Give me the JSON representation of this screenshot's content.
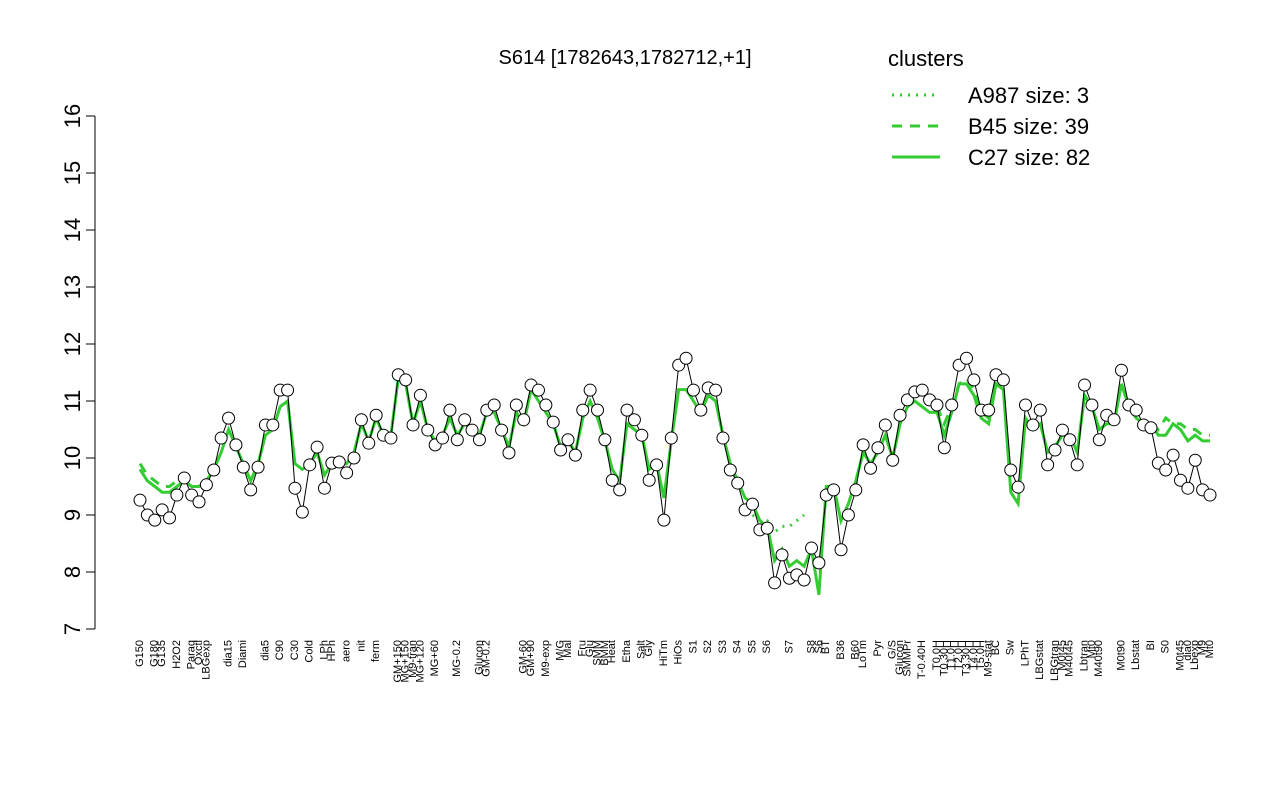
{
  "chart_data": {
    "type": "line",
    "title": "S614 [1782643,1782712,+1]",
    "legend_title": "clusters",
    "legend_position": "top-right",
    "line_color": "#000000",
    "point_fill": "#ffffff",
    "point_color": "#000000",
    "ylim": [
      7,
      16
    ],
    "yticks": [
      7,
      8,
      9,
      10,
      11,
      12,
      13,
      14,
      15,
      16
    ],
    "categories": [
      "G150",
      null,
      "G180",
      "G135",
      null,
      "H2O2",
      null,
      "Paraq",
      "Oxctl",
      "LBGexp",
      null,
      null,
      "dia15",
      null,
      "Diami",
      null,
      null,
      "dia5",
      null,
      "C90",
      null,
      "C30",
      null,
      "Cold",
      null,
      "LPh",
      "HPh",
      null,
      "aero",
      null,
      "nit",
      null,
      "ferm",
      null,
      null,
      "GM+150",
      "MG+150",
      "M9-tran",
      "MG+120",
      null,
      "MG+60",
      null,
      null,
      "MG-0.2",
      null,
      null,
      "Glucon",
      "GM-0.2",
      null,
      null,
      null,
      null,
      "GM-60",
      "GM+90",
      null,
      "M9-exp",
      null,
      "M/G",
      "Mal",
      null,
      "Fru",
      "Glu",
      "SMM",
      "BMM",
      "Heat",
      null,
      "Etha",
      null,
      "Salt",
      "Gly",
      null,
      "HiTm",
      null,
      "HiOs",
      null,
      "S1",
      null,
      "S2",
      null,
      "S3",
      null,
      "S4",
      null,
      "S5",
      null,
      "S6",
      null,
      null,
      "S7",
      null,
      null,
      "S8",
      "S6",
      "BT",
      null,
      "B36",
      null,
      "B60",
      "LoTm",
      null,
      "Pyr",
      null,
      "G/S",
      "Glucon",
      "SMMPr",
      null,
      "T-0.40H",
      null,
      "T0.0H",
      "T0.30H",
      "T1.0H",
      "T2.0H",
      "T3.30H",
      "T4.0H",
      "T5.0H",
      "M9-stat",
      "BC",
      null,
      "Sw",
      null,
      "LPhT",
      null,
      "LBGstat",
      null,
      "LBGtran",
      "M0t45",
      "M40t45",
      null,
      "Lbtran",
      "Mt0",
      "M40t90",
      null,
      null,
      "M0t90",
      null,
      "Lbstat",
      null,
      "BI",
      null,
      "S0",
      null,
      "M0t45",
      "dia0",
      "Lbexp",
      "M9",
      "Mt0"
    ],
    "values": [
      9.26,
      9.0,
      8.91,
      9.09,
      8.95,
      9.35,
      9.65,
      9.35,
      9.23,
      9.53,
      9.79,
      10.35,
      10.7,
      10.23,
      9.84,
      9.44,
      9.84,
      10.58,
      10.58,
      11.19,
      11.19,
      9.47,
      9.05,
      9.88,
      10.19,
      9.47,
      9.91,
      9.93,
      9.74,
      10.0,
      10.67,
      10.26,
      10.75,
      10.4,
      10.35,
      11.46,
      11.37,
      10.58,
      11.1,
      10.49,
      10.23,
      10.35,
      10.84,
      10.32,
      10.67,
      10.49,
      10.32,
      10.84,
      10.93,
      10.49,
      10.09,
      10.93,
      10.67,
      11.28,
      11.19,
      10.93,
      10.63,
      10.14,
      10.32,
      10.05,
      10.84,
      11.19,
      10.84,
      10.32,
      9.61,
      9.44,
      10.84,
      10.67,
      10.4,
      9.61,
      9.88,
      8.91,
      10.35,
      11.63,
      11.75,
      11.19,
      10.84,
      11.23,
      11.19,
      10.35,
      9.79,
      9.56,
      9.09,
      9.19,
      8.74,
      8.77,
      7.81,
      8.3,
      7.89,
      7.95,
      7.86,
      8.42,
      8.16,
      9.35,
      9.44,
      8.39,
      9.0,
      9.44,
      10.23,
      9.82,
      10.18,
      10.58,
      9.96,
      10.75,
      11.02,
      11.16,
      11.19,
      11.02,
      10.93,
      10.18,
      10.93,
      11.63,
      11.75,
      11.37,
      10.84,
      10.84,
      11.46,
      11.37,
      9.79,
      9.49,
      10.93,
      10.58,
      10.84,
      9.88,
      10.14,
      10.49,
      10.32,
      9.88,
      11.28,
      10.93,
      10.32,
      10.75,
      10.67,
      11.54,
      10.93,
      10.84,
      10.58,
      10.53,
      9.91,
      9.79,
      10.05,
      9.61,
      9.47,
      9.96,
      9.44,
      9.35
    ],
    "series": [
      {
        "name": "A987 size: 3",
        "color": "#33cc33",
        "dash": "dotted",
        "values": [
          null,
          null,
          null,
          null,
          null,
          null,
          null,
          null,
          null,
          null,
          null,
          null,
          null,
          null,
          null,
          null,
          null,
          null,
          null,
          null,
          null,
          null,
          null,
          null,
          null,
          null,
          null,
          null,
          null,
          null,
          null,
          null,
          null,
          null,
          null,
          null,
          null,
          null,
          null,
          null,
          null,
          null,
          null,
          null,
          null,
          null,
          null,
          null,
          null,
          null,
          null,
          null,
          null,
          null,
          null,
          null,
          null,
          null,
          null,
          null,
          null,
          null,
          null,
          null,
          null,
          null,
          null,
          null,
          null,
          null,
          null,
          null,
          null,
          null,
          null,
          null,
          null,
          null,
          null,
          null,
          null,
          null,
          null,
          9.0,
          8.9,
          8.9,
          8.7,
          8.8,
          8.8,
          8.9,
          9.0,
          null,
          null,
          null,
          null,
          null,
          null,
          null,
          null,
          null,
          null,
          null,
          null,
          null,
          null,
          null,
          null,
          null,
          null,
          null,
          null,
          null,
          null,
          null,
          null,
          null,
          null,
          null,
          null,
          null,
          null,
          null,
          null,
          null,
          null,
          null,
          null,
          null,
          null,
          null,
          null,
          null,
          null,
          null,
          null,
          null,
          null,
          null,
          null,
          null,
          null,
          null,
          null,
          null,
          null,
          null
        ]
      },
      {
        "name": "B45 size: 39",
        "color": "#33cc33",
        "dash": "dashed",
        "values": [
          9.9,
          9.7,
          9.6,
          9.5,
          9.5,
          9.6,
          9.7,
          9.6,
          null,
          null,
          null,
          null,
          null,
          null,
          null,
          null,
          null,
          null,
          null,
          null,
          null,
          null,
          null,
          null,
          null,
          null,
          null,
          null,
          null,
          null,
          null,
          null,
          null,
          null,
          null,
          null,
          null,
          null,
          null,
          null,
          null,
          null,
          null,
          null,
          null,
          null,
          null,
          null,
          null,
          null,
          null,
          null,
          null,
          null,
          null,
          null,
          null,
          null,
          null,
          null,
          null,
          null,
          null,
          null,
          null,
          null,
          null,
          null,
          null,
          null,
          null,
          null,
          null,
          null,
          null,
          null,
          null,
          null,
          null,
          null,
          null,
          null,
          null,
          null,
          null,
          null,
          null,
          null,
          null,
          null,
          null,
          null,
          null,
          null,
          null,
          null,
          null,
          null,
          null,
          null,
          null,
          null,
          null,
          null,
          null,
          null,
          null,
          null,
          10.9,
          10.6,
          10.9,
          11.3,
          11.4,
          11.2,
          10.8,
          10.7,
          11.4,
          11.3,
          null,
          null,
          null,
          null,
          null,
          null,
          null,
          null,
          null,
          null,
          null,
          null,
          null,
          null,
          null,
          null,
          null,
          null,
          null,
          10.6,
          10.5,
          10.7,
          10.6,
          10.6,
          10.5,
          10.5,
          10.4,
          10.4
        ]
      },
      {
        "name": "C27 size: 82",
        "color": "#33cc33",
        "dash": "solid",
        "values": [
          9.8,
          9.6,
          9.5,
          9.4,
          9.4,
          9.5,
          9.6,
          9.5,
          9.5,
          9.6,
          9.8,
          10.1,
          10.5,
          10.2,
          9.9,
          9.6,
          9.9,
          10.4,
          10.5,
          10.9,
          11.0,
          9.9,
          9.8,
          9.9,
          10.1,
          9.7,
          9.9,
          9.9,
          9.9,
          10.1,
          10.6,
          10.3,
          10.7,
          10.4,
          10.4,
          11.4,
          11.3,
          10.6,
          11.0,
          10.5,
          10.3,
          10.4,
          10.7,
          10.4,
          10.6,
          10.5,
          10.4,
          10.8,
          10.8,
          10.5,
          10.2,
          10.8,
          10.6,
          11.2,
          11.0,
          10.8,
          10.6,
          10.2,
          10.3,
          10.1,
          10.7,
          11.0,
          10.7,
          10.3,
          9.8,
          9.6,
          10.6,
          10.5,
          10.4,
          9.8,
          9.9,
          9.3,
          10.3,
          11.2,
          11.2,
          11.0,
          10.8,
          11.1,
          11.0,
          10.4,
          9.9,
          9.6,
          9.3,
          9.2,
          8.9,
          8.8,
          8.2,
          8.4,
          8.1,
          8.2,
          8.1,
          8.4,
          7.6,
          9.5,
          9.5,
          8.9,
          9.2,
          9.6,
          10.1,
          9.9,
          10.1,
          10.4,
          10.0,
          10.6,
          10.9,
          11.0,
          10.9,
          10.8,
          10.8,
          10.4,
          10.8,
          11.3,
          11.3,
          11.1,
          10.7,
          10.6,
          11.3,
          11.2,
          9.4,
          9.2,
          10.7,
          10.5,
          10.6,
          10.1,
          10.2,
          10.4,
          10.4,
          10.1,
          11.1,
          10.9,
          10.5,
          10.6,
          10.6,
          11.3,
          10.9,
          10.7,
          10.6,
          10.6,
          10.4,
          10.4,
          10.6,
          10.5,
          10.3,
          10.4,
          10.3,
          10.3
        ]
      }
    ]
  }
}
